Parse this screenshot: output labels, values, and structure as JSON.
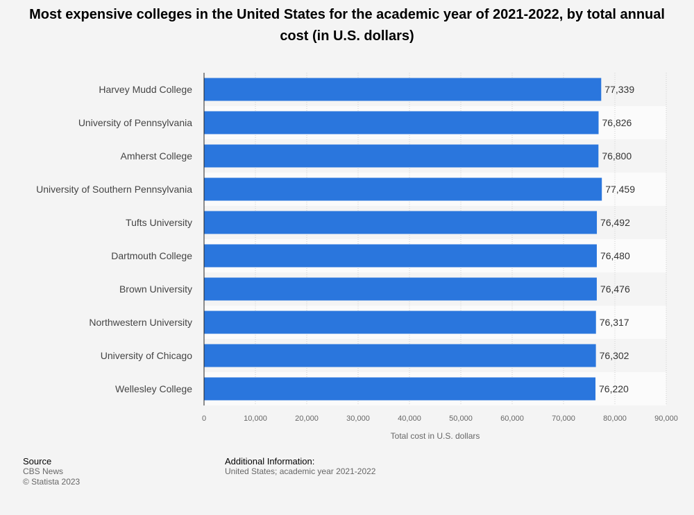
{
  "chart_data": {
    "type": "bar",
    "orientation": "horizontal",
    "title": "Most expensive colleges in the United States for the academic year of 2021-2022, by total annual cost (in U.S. dollars)",
    "xlabel": "Total cost in U.S. dollars",
    "ylabel": "",
    "xlim": [
      0,
      90000
    ],
    "ticks": [
      0,
      10000,
      20000,
      30000,
      40000,
      50000,
      60000,
      70000,
      80000,
      90000
    ],
    "tick_labels": [
      "0",
      "10,000",
      "20,000",
      "30,000",
      "40,000",
      "50,000",
      "60,000",
      "70,000",
      "80,000",
      "90,000"
    ],
    "categories": [
      "Harvey Mudd College",
      "University of Pennsylvania",
      "Amherst College",
      "University of Southern Pennsylvania",
      "Tufts University",
      "Dartmouth College",
      "Brown University",
      "Northwestern University",
      "University of Chicago",
      "Wellesley College"
    ],
    "values": [
      77339,
      76826,
      76800,
      77459,
      76492,
      76480,
      76476,
      76317,
      76302,
      76220
    ],
    "value_labels": [
      "77,339",
      "76,826",
      "76,800",
      "77,459",
      "76,492",
      "76,480",
      "76,476",
      "76,317",
      "76,302",
      "76,220"
    ],
    "bar_color": "#2a76dd",
    "grid": true
  },
  "footer": {
    "source_heading": "Source",
    "source_line1": "CBS News",
    "source_line2": "© Statista 2023",
    "info_heading": "Additional Information:",
    "info_text": "United States; academic year 2021-2022"
  }
}
